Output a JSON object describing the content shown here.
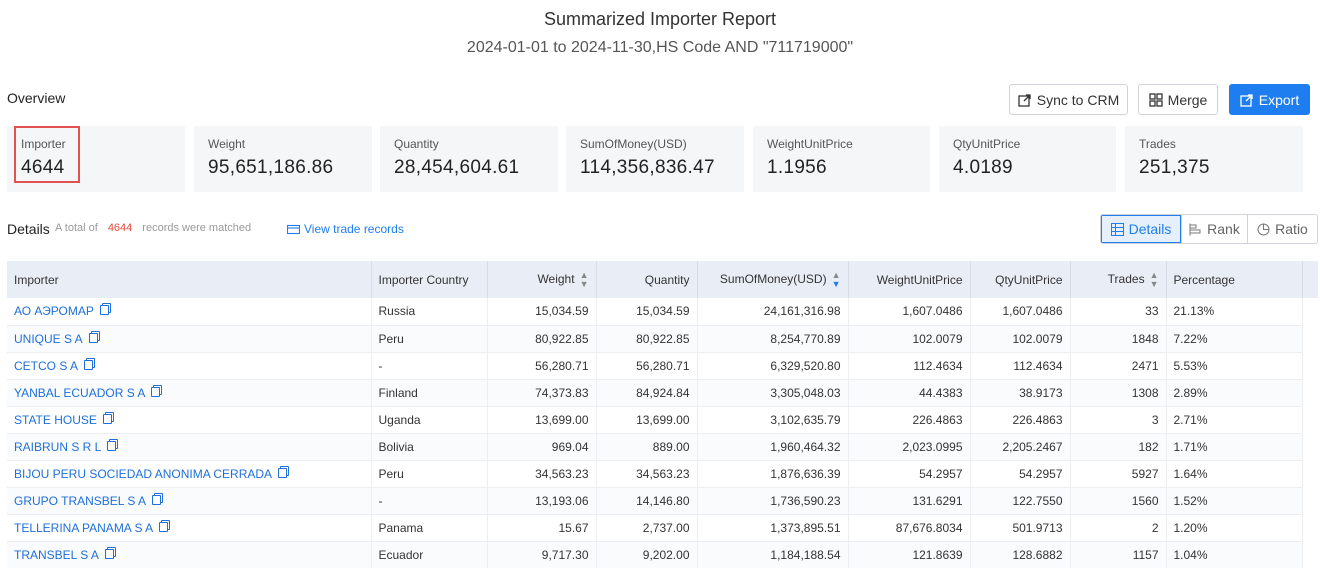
{
  "header": {
    "title": "Summarized Importer Report",
    "subtitle": "2024-01-01 to 2024-11-30,HS Code AND \"711719000\""
  },
  "overview": {
    "label": "Overview",
    "buttons": {
      "sync": "Sync to CRM",
      "merge": "Merge",
      "export": "Export"
    },
    "cards": [
      {
        "label": "Importer",
        "value": "4644"
      },
      {
        "label": "Weight",
        "value": "95,651,186.86"
      },
      {
        "label": "Quantity",
        "value": "28,454,604.61"
      },
      {
        "label": "SumOfMoney(USD)",
        "value": "114,356,836.47"
      },
      {
        "label": "WeightUnitPrice",
        "value": "1.1956"
      },
      {
        "label": "QtyUnitPrice",
        "value": "4.0189"
      },
      {
        "label": "Trades",
        "value": "251,375"
      }
    ]
  },
  "details": {
    "label": "Details",
    "total_prefix": "A total of",
    "total_count": "4644",
    "total_suffix": "records were matched",
    "view_records": "View trade records",
    "views": {
      "details": "Details",
      "rank": "Rank",
      "ratio": "Ratio"
    }
  },
  "table": {
    "columns": [
      "Importer",
      "Importer Country",
      "Weight",
      "Quantity",
      "SumOfMoney(USD)",
      "WeightUnitPrice",
      "QtyUnitPrice",
      "Trades",
      "Percentage"
    ],
    "rows": [
      [
        "АО АЭРОМАР",
        "Russia",
        "15,034.59",
        "15,034.59",
        "24,161,316.98",
        "1,607.0486",
        "1,607.0486",
        "33",
        "21.13%"
      ],
      [
        "UNIQUE S A",
        "Peru",
        "80,922.85",
        "80,922.85",
        "8,254,770.89",
        "102.0079",
        "102.0079",
        "1848",
        "7.22%"
      ],
      [
        "CETCO S A",
        "-",
        "56,280.71",
        "56,280.71",
        "6,329,520.80",
        "112.4634",
        "112.4634",
        "2471",
        "5.53%"
      ],
      [
        "YANBAL ECUADOR S A",
        "Finland",
        "74,373.83",
        "84,924.84",
        "3,305,048.03",
        "44.4383",
        "38.9173",
        "1308",
        "2.89%"
      ],
      [
        "STATE HOUSE",
        "Uganda",
        "13,699.00",
        "13,699.00",
        "3,102,635.79",
        "226.4863",
        "226.4863",
        "3",
        "2.71%"
      ],
      [
        "RAIBRUN S R L",
        "Bolivia",
        "969.04",
        "889.00",
        "1,960,464.32",
        "2,023.0995",
        "2,205.2467",
        "182",
        "1.71%"
      ],
      [
        "BIJOU PERU SOCIEDAD ANONIMA CERRADA",
        "Peru",
        "34,563.23",
        "34,563.23",
        "1,876,636.39",
        "54.2957",
        "54.2957",
        "5927",
        "1.64%"
      ],
      [
        "GRUPO TRANSBEL S A",
        "-",
        "13,193.06",
        "14,146.80",
        "1,736,590.23",
        "131.6291",
        "122.7550",
        "1560",
        "1.52%"
      ],
      [
        "TELLERINA PANAMA S A",
        "Panama",
        "15.67",
        "2,737.00",
        "1,373,895.51",
        "87,676.8034",
        "501.9713",
        "2",
        "1.20%"
      ],
      [
        "TRANSBEL S A",
        "Ecuador",
        "9,717.30",
        "9,202.00",
        "1,184,188.54",
        "121.8639",
        "128.6882",
        "1157",
        "1.04%"
      ]
    ]
  }
}
